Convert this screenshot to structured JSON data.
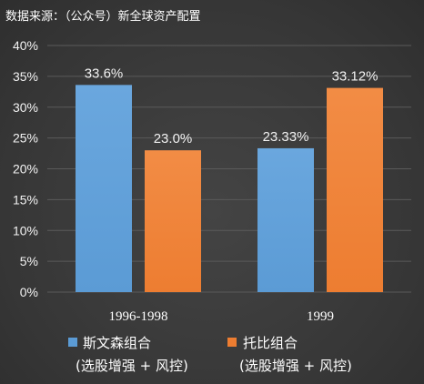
{
  "source_note": "数据来源：（公众号）新全球资产配置",
  "colors": {
    "series1_fill": "#5b9bd5",
    "series1_top": "#6aa7de",
    "series2_fill": "#ed7d31",
    "series2_top": "#f28c45",
    "gridline": "#5a5a5a",
    "text": "#ffffff"
  },
  "chart_data": {
    "type": "bar",
    "title": "",
    "xlabel": "",
    "ylabel": "",
    "categories": [
      "1996-1998",
      "1999"
    ],
    "series": [
      {
        "name_line1": "斯文森组合",
        "name_line2": "(选股增强 + 风控)",
        "values": [
          33.6,
          23.33
        ],
        "labels": [
          "33.6%",
          "23.33%"
        ]
      },
      {
        "name_line1": "托比组合",
        "name_line2": "(选股增强 + 风控)",
        "values": [
          23.0,
          33.12
        ],
        "labels": [
          "23.0%",
          "33.12%"
        ]
      }
    ],
    "ylim": [
      0,
      40
    ],
    "yticks": [
      "0%",
      "5%",
      "10%",
      "15%",
      "20%",
      "25%",
      "30%",
      "35%",
      "40%"
    ],
    "grid": true,
    "legend_position": "bottom"
  }
}
